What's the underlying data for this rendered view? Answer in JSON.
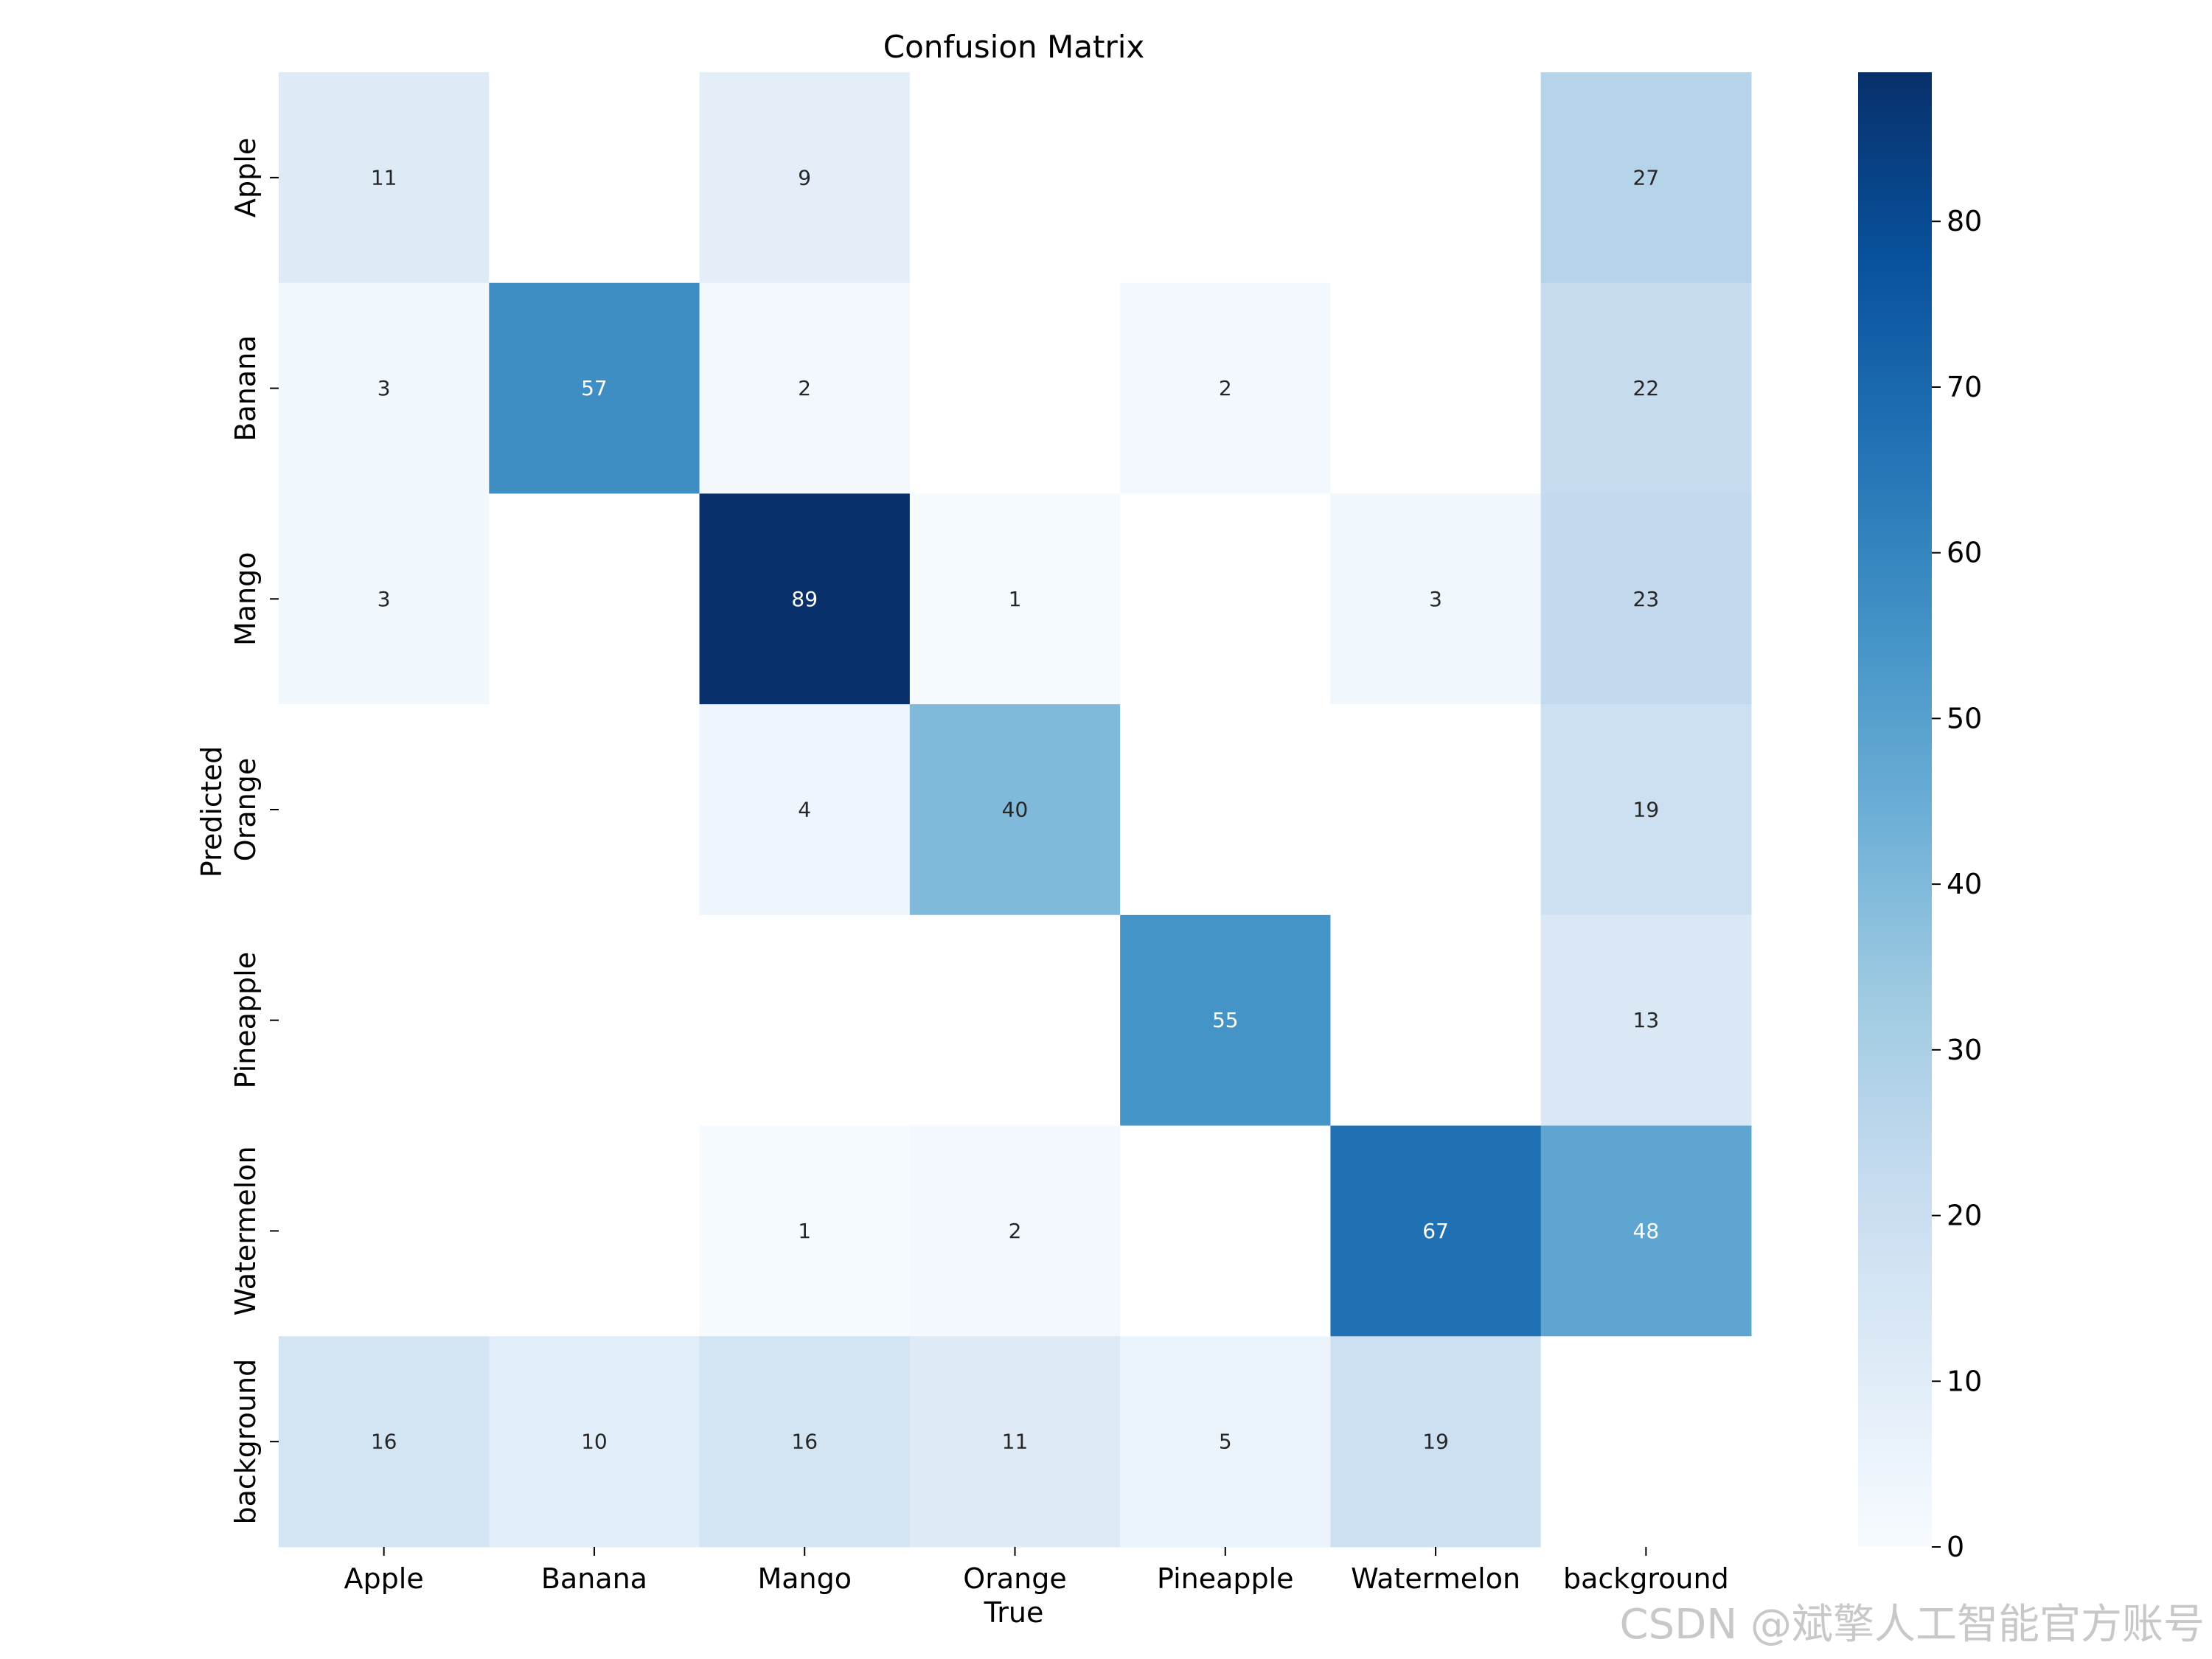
{
  "chart_data": {
    "type": "heatmap",
    "title": "Confusion Matrix",
    "xlabel": "True",
    "ylabel": "Predicted",
    "x_categories": [
      "Apple",
      "Banana",
      "Mango",
      "Orange",
      "Pineapple",
      "Watermelon",
      "background"
    ],
    "y_categories": [
      "Apple",
      "Banana",
      "Mango",
      "Orange",
      "Pineapple",
      "Watermelon",
      "background"
    ],
    "values": [
      [
        11,
        null,
        9,
        null,
        null,
        null,
        27
      ],
      [
        3,
        57,
        2,
        null,
        2,
        null,
        22
      ],
      [
        3,
        null,
        89,
        1,
        null,
        3,
        23
      ],
      [
        null,
        null,
        4,
        40,
        null,
        null,
        19
      ],
      [
        null,
        null,
        null,
        null,
        55,
        null,
        13
      ],
      [
        null,
        null,
        1,
        2,
        null,
        67,
        48
      ],
      [
        16,
        10,
        16,
        11,
        5,
        19,
        null
      ]
    ],
    "colormap": "Blues",
    "colorbar": {
      "min": 0,
      "max": 89,
      "ticks": [
        0,
        10,
        20,
        30,
        40,
        50,
        60,
        70,
        80
      ]
    },
    "empty_cell_color": "#ffffff"
  },
  "watermark": "CSDN @斌擎人工智能官方账号"
}
